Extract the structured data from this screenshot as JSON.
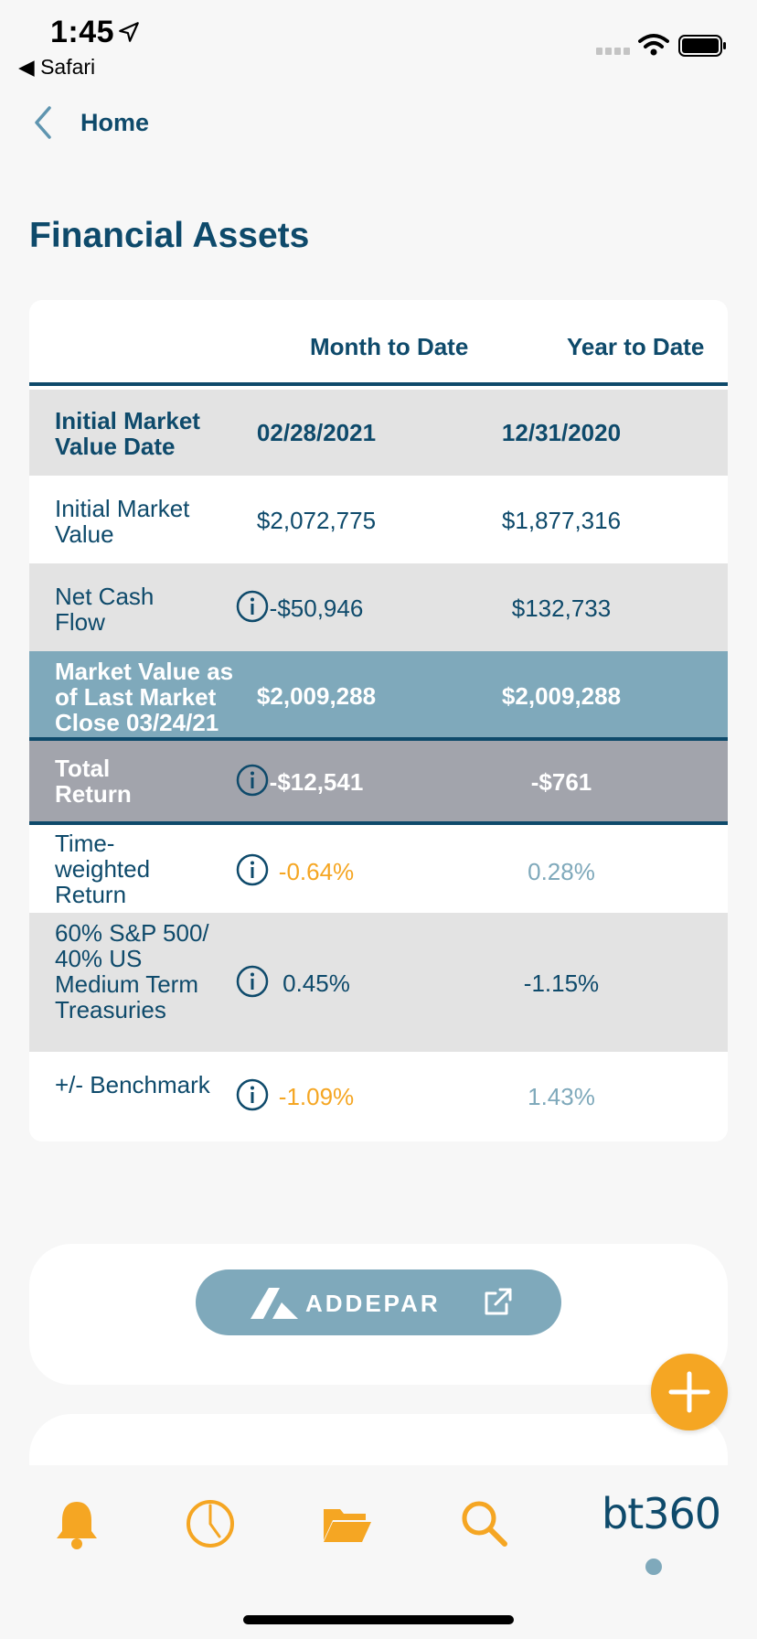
{
  "status_bar": {
    "time": "1:45",
    "back_app": "◀ Safari"
  },
  "nav": {
    "back_label": "Home"
  },
  "page_title": "Financial Assets",
  "table": {
    "columns": [
      "Month to Date",
      "Year to Date"
    ],
    "rows": [
      {
        "label": "Initial Market Value Date",
        "mtd": "02/28/2021",
        "ytd": "12/31/2020"
      },
      {
        "label": "Initial Market Value",
        "mtd": "$2,072,775",
        "ytd": "$1,877,316"
      },
      {
        "label": "Net Cash Flow",
        "mtd": "-$50,946",
        "ytd": "$132,733"
      },
      {
        "label": "Market Value as of Last Market Close 03/24/21",
        "mtd": "$2,009,288",
        "ytd": "$2,009,288"
      },
      {
        "label": "Total Return",
        "mtd": "-$12,541",
        "ytd": "-$761"
      },
      {
        "label": "Time-weighted Return",
        "mtd": "-0.64%",
        "ytd": "0.28%"
      },
      {
        "label": "60% S&P 500/ 40% US Medium Term Treasuries",
        "mtd": "0.45%",
        "ytd": "-1.15%"
      },
      {
        "label": "+/- Benchmark",
        "mtd": "-1.09%",
        "ytd": "1.43%"
      }
    ]
  },
  "addepar": {
    "label": "ADDEPAR"
  },
  "tabbar": {
    "brand": "bt360",
    "icons": [
      "bell-icon",
      "clock-icon",
      "folder-icon",
      "search-icon"
    ]
  },
  "colors": {
    "primary": "#0e4a6b",
    "accent": "#f5a623",
    "muted_blue": "#7fa9bb",
    "gray_row": "#e3e3e3",
    "total_row": "#a2a4ac"
  }
}
